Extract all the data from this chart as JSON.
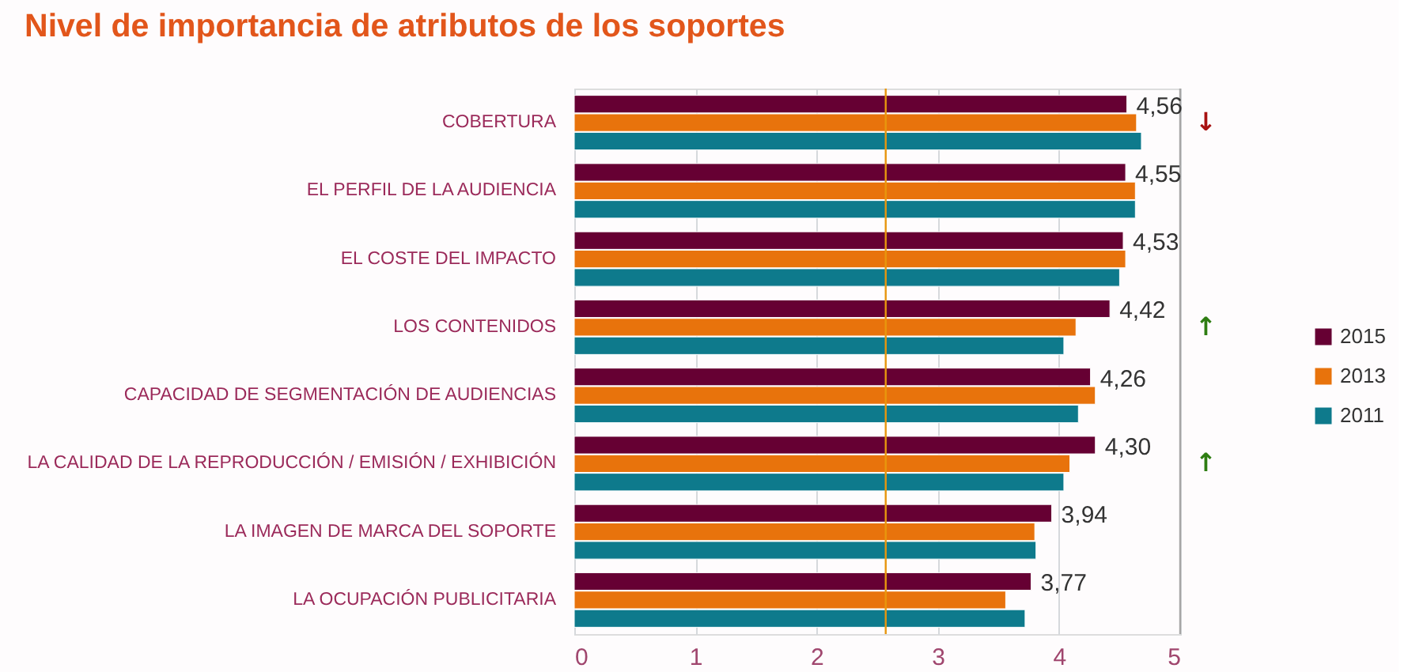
{
  "chart_data": {
    "type": "bar",
    "orientation": "horizontal",
    "title": "Nivel de importancia de atributos de los soportes",
    "categories": [
      "COBERTURA",
      "EL PERFIL DE LA AUDIENCIA",
      "EL COSTE DEL IMPACTO",
      "LOS CONTENIDOS",
      "CAPACIDAD DE SEGMENTACIÓN DE AUDIENCIAS",
      "LA CALIDAD DE LA REPRODUCCIÓN / EMISIÓN / EXHIBICIÓN",
      "LA IMAGEN DE MARCA DEL SOPORTE",
      "LA OCUPACIÓN PUBLICITARIA"
    ],
    "y2_categories": [
      "↓",
      null,
      null,
      "↑",
      null,
      "↑",
      null,
      null
    ],
    "series": [
      {
        "name": "2015",
        "color": "#660033",
        "values": [
          4.56,
          4.55,
          4.53,
          4.42,
          4.26,
          4.3,
          3.94,
          3.77
        ],
        "value_labels": [
          "4,56",
          "4,55",
          "4,53",
          "4,42",
          "4,26",
          "4,30",
          "3,94",
          "3,77"
        ]
      },
      {
        "name": "2013",
        "color": "#e8730c",
        "values": [
          4.64,
          4.63,
          4.55,
          4.14,
          4.3,
          4.09,
          3.8,
          3.56
        ]
      },
      {
        "name": "2011",
        "color": "#0e7a8c",
        "values": [
          4.68,
          4.63,
          4.5,
          4.04,
          4.16,
          4.04,
          3.81,
          3.72
        ]
      }
    ],
    "xlim": [
      0,
      5
    ],
    "xticks": [
      0,
      1,
      2,
      3,
      4,
      5
    ],
    "grid": "x",
    "legend": "right",
    "ref_lines": [
      {
        "axis": "x",
        "value": 2.57,
        "color": "#e8960e"
      },
      {
        "axis": "x",
        "value": 5,
        "color": "#a6a6a6"
      }
    ]
  }
}
